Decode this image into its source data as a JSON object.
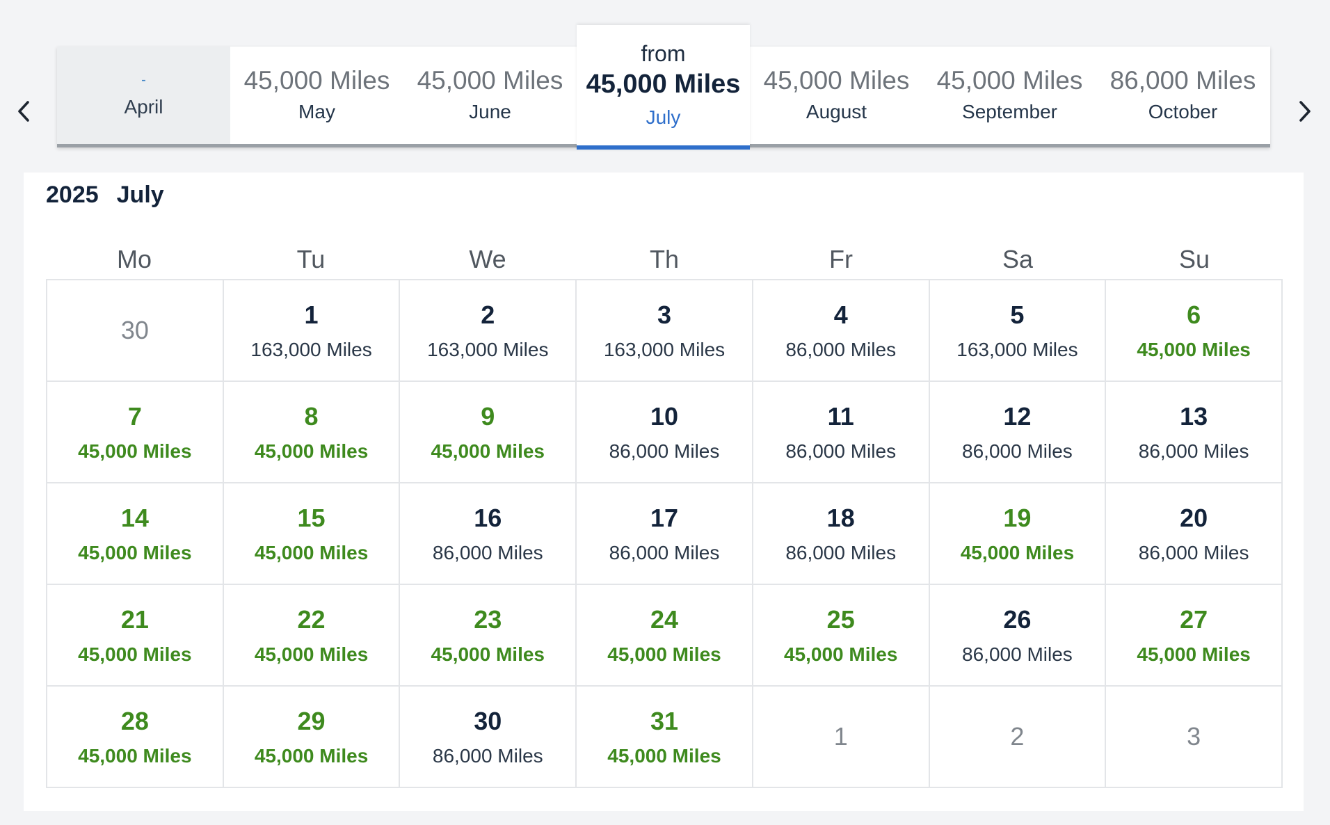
{
  "nav": {
    "prev_icon": "chevron-left-icon",
    "next_icon": "chevron-right-icon"
  },
  "months": [
    {
      "dash": "-",
      "name": "April",
      "state": "disabled"
    },
    {
      "price": "45,000 Miles",
      "name": "May"
    },
    {
      "price": "45,000 Miles",
      "name": "June"
    },
    {
      "from": "from",
      "price": "45,000 Miles",
      "name": "July",
      "state": "selected"
    },
    {
      "price": "45,000 Miles",
      "name": "August"
    },
    {
      "price": "45,000 Miles",
      "name": "September"
    },
    {
      "price": "86,000 Miles",
      "name": "October"
    }
  ],
  "calendar": {
    "year": "2025",
    "month": "July",
    "weekdays": [
      "Mo",
      "Tu",
      "We",
      "Th",
      "Fr",
      "Sa",
      "Su"
    ],
    "colors": {
      "cheap": "#3e8a1e",
      "selected_accent": "#2f6fcb"
    },
    "days": [
      {
        "day": "30",
        "miles": null,
        "type": "muted"
      },
      {
        "day": "1",
        "miles": "163,000 Miles",
        "type": "regular"
      },
      {
        "day": "2",
        "miles": "163,000 Miles",
        "type": "regular"
      },
      {
        "day": "3",
        "miles": "163,000 Miles",
        "type": "regular"
      },
      {
        "day": "4",
        "miles": "86,000 Miles",
        "type": "regular"
      },
      {
        "day": "5",
        "miles": "163,000 Miles",
        "type": "regular"
      },
      {
        "day": "6",
        "miles": "45,000 Miles",
        "type": "cheap"
      },
      {
        "day": "7",
        "miles": "45,000 Miles",
        "type": "cheap"
      },
      {
        "day": "8",
        "miles": "45,000 Miles",
        "type": "cheap"
      },
      {
        "day": "9",
        "miles": "45,000 Miles",
        "type": "cheap"
      },
      {
        "day": "10",
        "miles": "86,000 Miles",
        "type": "regular"
      },
      {
        "day": "11",
        "miles": "86,000 Miles",
        "type": "regular"
      },
      {
        "day": "12",
        "miles": "86,000 Miles",
        "type": "regular"
      },
      {
        "day": "13",
        "miles": "86,000 Miles",
        "type": "regular"
      },
      {
        "day": "14",
        "miles": "45,000 Miles",
        "type": "cheap"
      },
      {
        "day": "15",
        "miles": "45,000 Miles",
        "type": "cheap"
      },
      {
        "day": "16",
        "miles": "86,000 Miles",
        "type": "regular"
      },
      {
        "day": "17",
        "miles": "86,000 Miles",
        "type": "regular"
      },
      {
        "day": "18",
        "miles": "86,000 Miles",
        "type": "regular"
      },
      {
        "day": "19",
        "miles": "45,000 Miles",
        "type": "cheap"
      },
      {
        "day": "20",
        "miles": "86,000 Miles",
        "type": "regular"
      },
      {
        "day": "21",
        "miles": "45,000 Miles",
        "type": "cheap"
      },
      {
        "day": "22",
        "miles": "45,000 Miles",
        "type": "cheap"
      },
      {
        "day": "23",
        "miles": "45,000 Miles",
        "type": "cheap"
      },
      {
        "day": "24",
        "miles": "45,000 Miles",
        "type": "cheap"
      },
      {
        "day": "25",
        "miles": "45,000 Miles",
        "type": "cheap"
      },
      {
        "day": "26",
        "miles": "86,000 Miles",
        "type": "regular"
      },
      {
        "day": "27",
        "miles": "45,000 Miles",
        "type": "cheap"
      },
      {
        "day": "28",
        "miles": "45,000 Miles",
        "type": "cheap"
      },
      {
        "day": "29",
        "miles": "45,000 Miles",
        "type": "cheap"
      },
      {
        "day": "30",
        "miles": "86,000 Miles",
        "type": "regular"
      },
      {
        "day": "31",
        "miles": "45,000 Miles",
        "type": "cheap"
      },
      {
        "day": "1",
        "miles": null,
        "type": "muted"
      },
      {
        "day": "2",
        "miles": null,
        "type": "muted"
      },
      {
        "day": "3",
        "miles": null,
        "type": "muted"
      }
    ]
  }
}
